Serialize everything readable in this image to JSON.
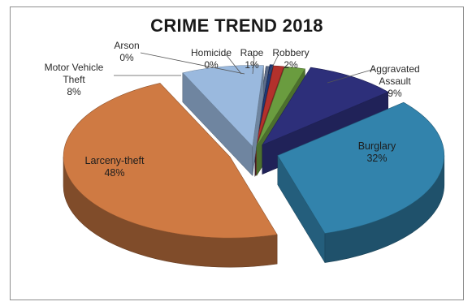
{
  "chart_data": {
    "type": "pie",
    "title": "CRIME TREND 2018",
    "style": "3d-exploded",
    "slices": [
      {
        "label": "Homicide",
        "value": 0,
        "pct_label": "0%",
        "color": "#1f3a78"
      },
      {
        "label": "Rape",
        "value": 1,
        "pct_label": "1%",
        "color": "#b3312c"
      },
      {
        "label": "Robbery",
        "value": 2,
        "pct_label": "2%",
        "color": "#6a9c3f"
      },
      {
        "label": "Aggravated Assault",
        "value": 9,
        "pct_label": "9%",
        "color": "#2d2f7a"
      },
      {
        "label": "Burglary",
        "value": 32,
        "pct_label": "32%",
        "color": "#3283ac"
      },
      {
        "label": "Larceny-theft",
        "value": 48,
        "pct_label": "48%",
        "color": "#cf7a43"
      },
      {
        "label": "Motor Vehicle Theft",
        "value": 8,
        "pct_label": "8%",
        "color": "#9ab9de"
      },
      {
        "label": "Arson",
        "value": 0,
        "pct_label": "0%",
        "color": "#5c6c8a"
      }
    ]
  }
}
